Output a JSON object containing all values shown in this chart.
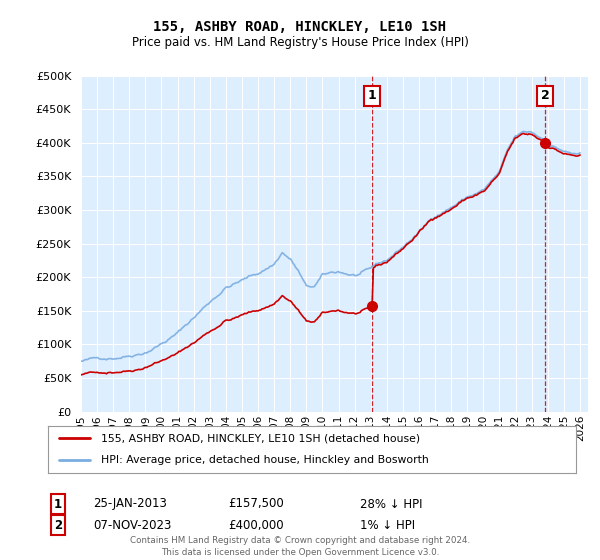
{
  "title": "155, ASHBY ROAD, HINCKLEY, LE10 1SH",
  "subtitle": "Price paid vs. HM Land Registry's House Price Index (HPI)",
  "legend_label_red": "155, ASHBY ROAD, HINCKLEY, LE10 1SH (detached house)",
  "legend_label_blue": "HPI: Average price, detached house, Hinckley and Bosworth",
  "footer": "Contains HM Land Registry data © Crown copyright and database right 2024.\nThis data is licensed under the Open Government Licence v3.0.",
  "sale1_date": "25-JAN-2013",
  "sale1_price": "£157,500",
  "sale1_hpi": "28% ↓ HPI",
  "sale2_date": "07-NOV-2023",
  "sale2_price": "£400,000",
  "sale2_hpi": "1% ↓ HPI",
  "ylim": [
    0,
    500000
  ],
  "xlim_start": 1995.0,
  "xlim_end": 2026.5,
  "red_color": "#cc0000",
  "blue_color": "#7aade0",
  "fill_color": "#ddeeff",
  "dashed_color": "#cc0000",
  "plot_bg_color": "#ddeeff",
  "grid_color": "#ffffff",
  "sale1_year": 2013.07,
  "sale1_value": 157500,
  "sale2_year": 2023.85,
  "sale2_value": 400000,
  "hpi_at_sale1": 218000,
  "hpi_at_sale2": 405000
}
